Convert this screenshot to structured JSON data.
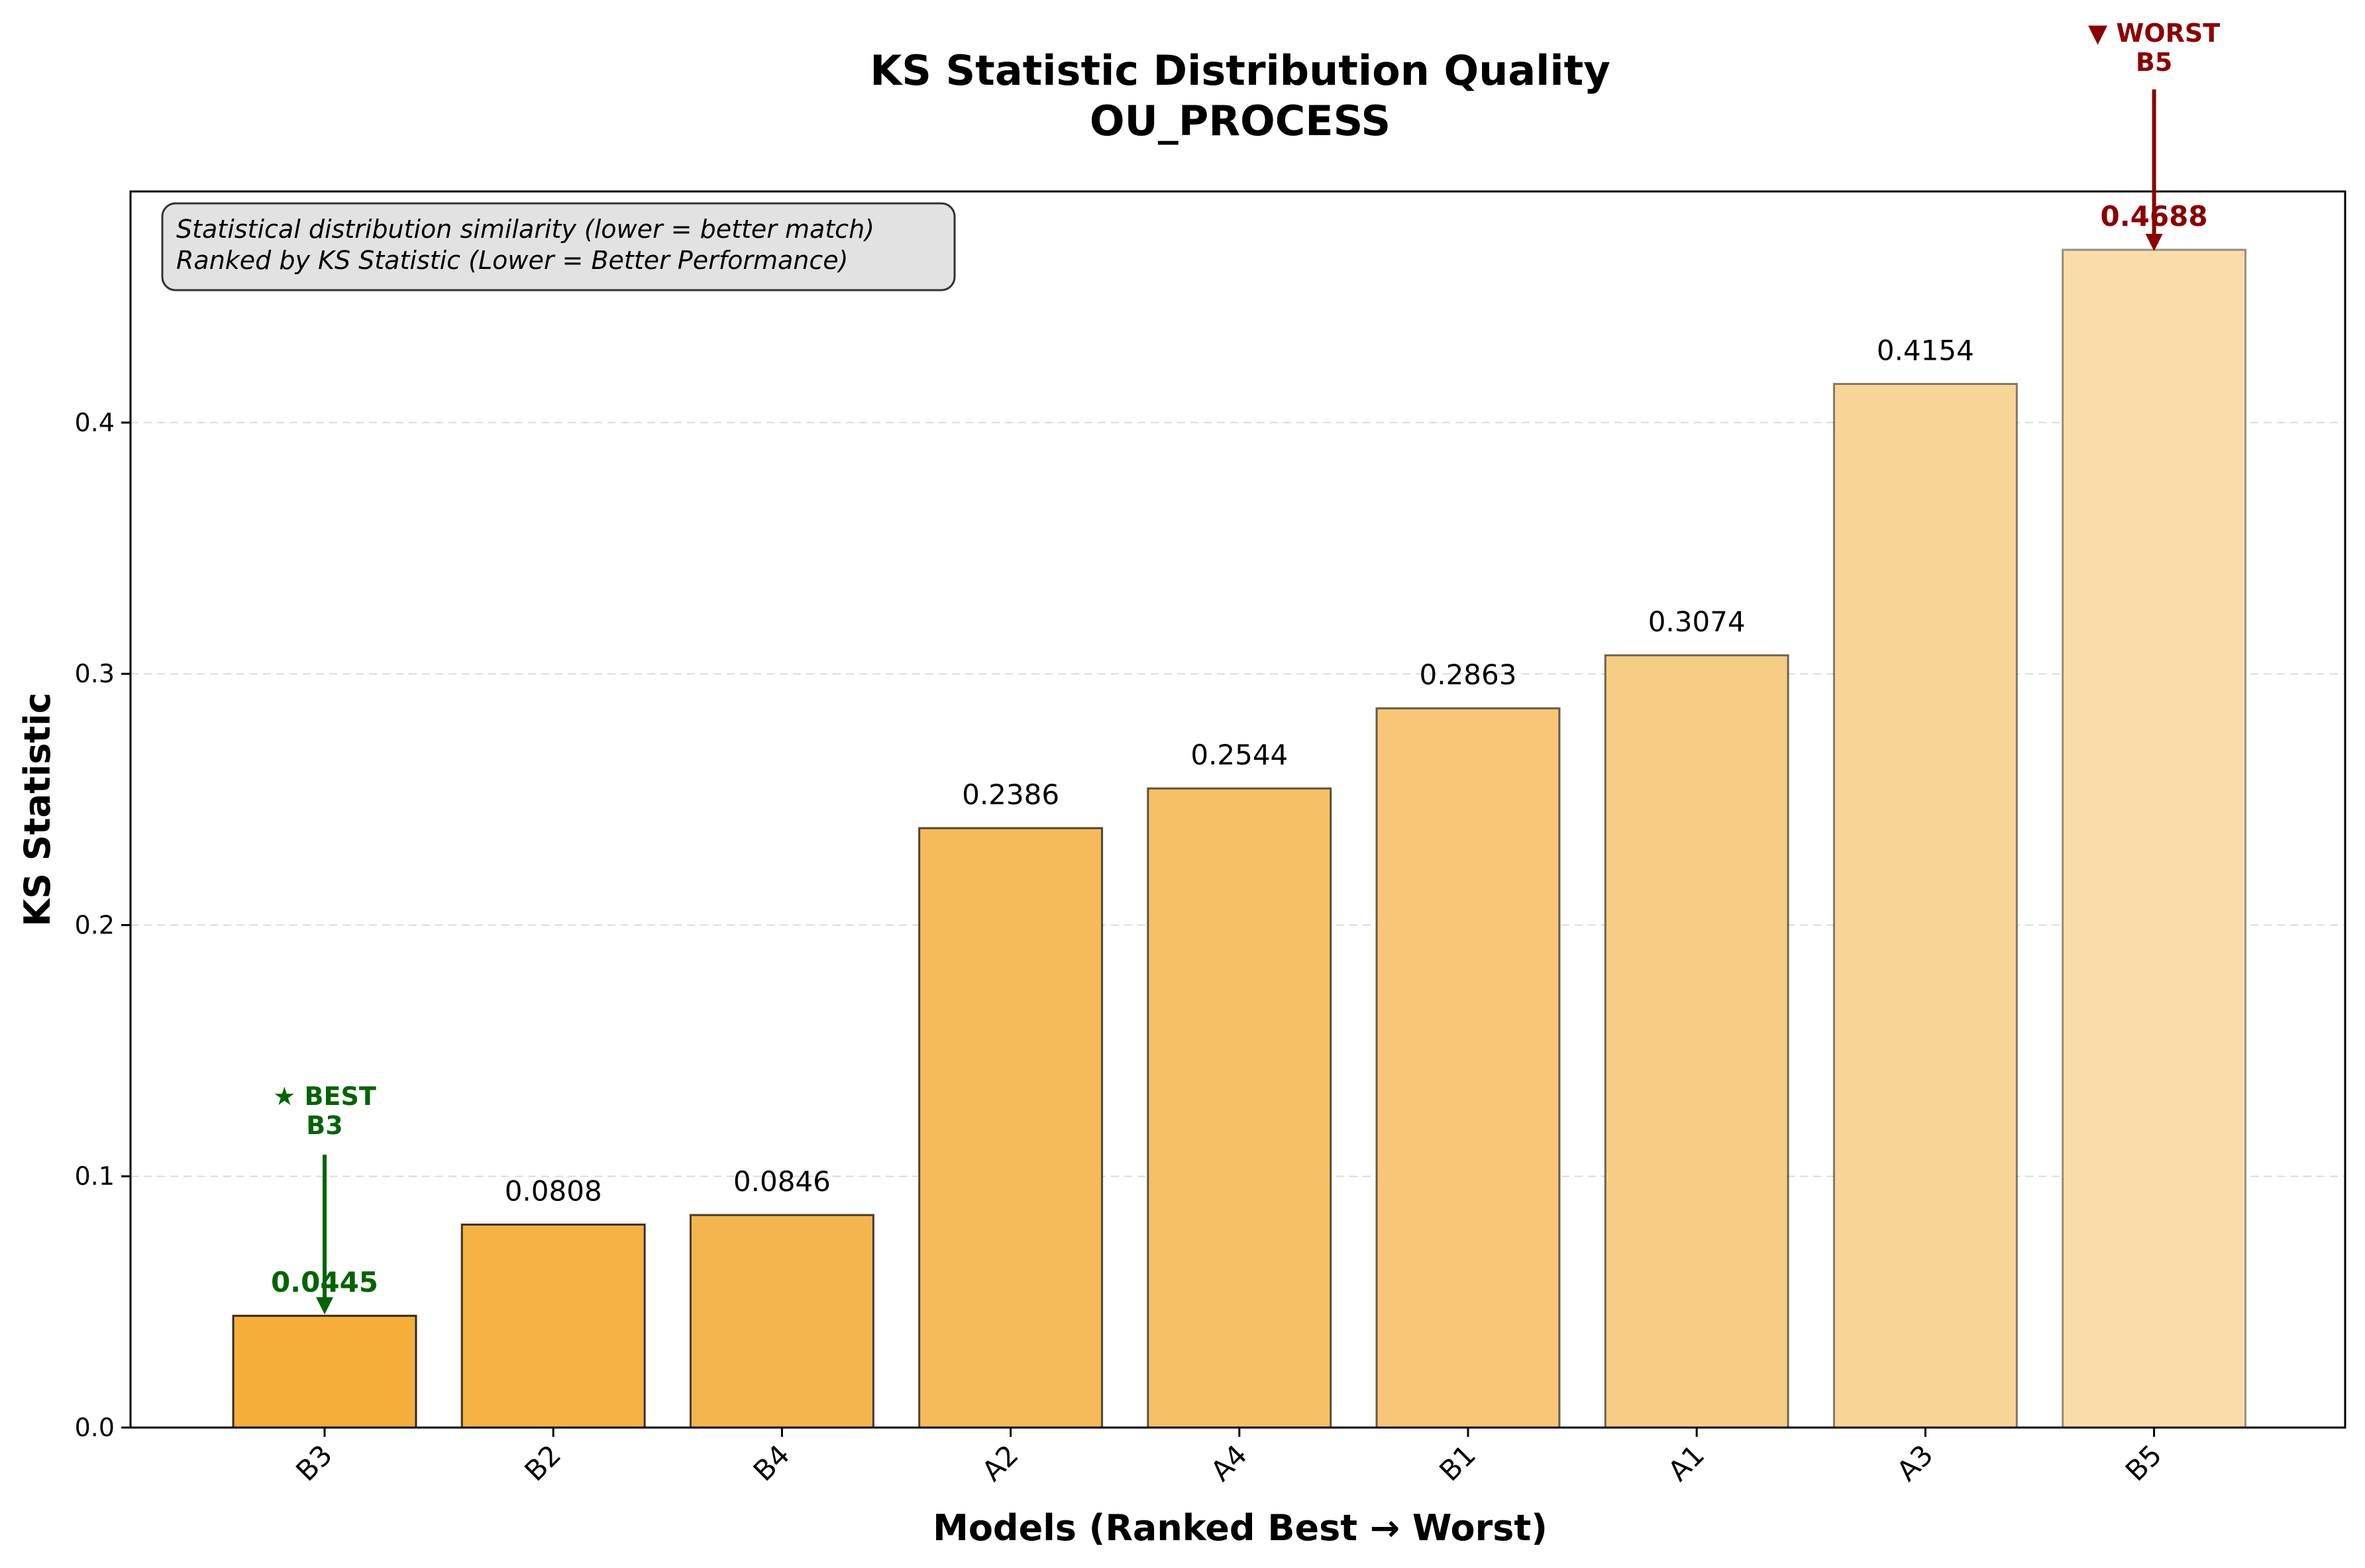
{
  "chart_data": {
    "type": "bar",
    "title_line1": "KS Statistic Distribution Quality",
    "title_line2": "OU_PROCESS",
    "xlabel": "Models (Ranked Best → Worst)",
    "ylabel": "KS Statistic",
    "categories": [
      "B3",
      "B2",
      "B4",
      "A2",
      "A4",
      "B1",
      "A1",
      "A3",
      "B5"
    ],
    "values": [
      0.0445,
      0.0808,
      0.0846,
      0.2386,
      0.2544,
      0.2863,
      0.3074,
      0.4154,
      0.4688
    ],
    "value_labels": [
      "0.0445",
      "0.0808",
      "0.0846",
      "0.2386",
      "0.2544",
      "0.2863",
      "0.3074",
      "0.4154",
      "0.4688"
    ],
    "ylim": [
      0,
      0.492
    ],
    "yticks": [
      0.0,
      0.1,
      0.2,
      0.3,
      0.4
    ],
    "ytick_labels": [
      "0.0",
      "0.1",
      "0.2",
      "0.3",
      "0.4"
    ],
    "grid": "y-dashed",
    "bar_colors": [
      "#f5ae3a",
      "#f5b244",
      "#f5b54e",
      "#f5bb5a",
      "#f6c067",
      "#f7c777",
      "#f7cd86",
      "#f8d497",
      "#f9dcaa"
    ],
    "bar_edge_opacity": [
      1.0,
      0.95,
      0.9,
      0.85,
      0.8,
      0.75,
      0.7,
      0.6,
      0.5
    ],
    "info_lines": [
      "Statistical distribution similarity (lower = better match)",
      "Ranked by KS Statistic (Lower = Better Performance)"
    ],
    "best": {
      "index": 0,
      "label_line1": "★ BEST",
      "label_line2": "B3",
      "color": "#006400"
    },
    "worst": {
      "index": 8,
      "label_line1": "▼ WORST",
      "label_line2": "B5",
      "color": "#8b0000"
    }
  }
}
